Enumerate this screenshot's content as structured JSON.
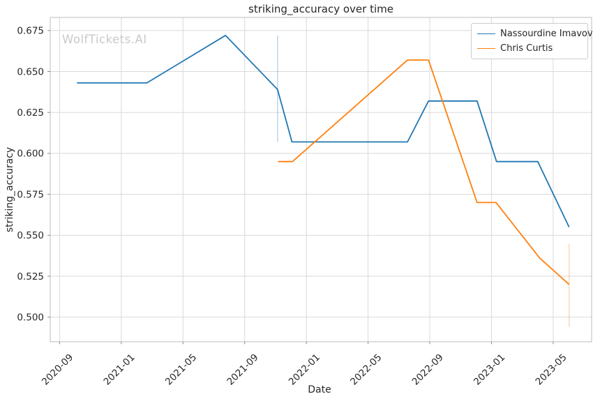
{
  "chart_data": {
    "type": "line",
    "title": "striking_accuracy over time",
    "xlabel": "Date",
    "ylabel": "striking_accuracy",
    "watermark": "WolfTickets.AI",
    "grid": true,
    "legend_position": "upper right",
    "x_tick_labels": [
      "2020-09",
      "2021-01",
      "2021-05",
      "2021-09",
      "2022-01",
      "2022-05",
      "2022-09",
      "2023-01",
      "2023-05"
    ],
    "y_tick_labels": [
      "0.500",
      "0.525",
      "0.550",
      "0.575",
      "0.600",
      "0.625",
      "0.650",
      "0.675"
    ],
    "xlim": [
      "2020-08-13",
      "2023-07-16"
    ],
    "ylim": [
      0.485,
      0.683
    ],
    "colors": {
      "grid": "#d9d9d9",
      "spine": "#bcbcbc",
      "tick_mark": "#8a8a8a",
      "text": "#262626",
      "watermark": "#c9c9c9",
      "series_blue": "#1f77b4",
      "series_orange": "#ff7f0e"
    },
    "series": [
      {
        "name": "Nassourdine Imavov",
        "color": "#1f77b4",
        "points": [
          [
            "2020-10-05",
            0.643
          ],
          [
            "2021-02-21",
            0.643
          ],
          [
            "2021-07-24",
            0.672
          ],
          [
            "2021-11-05",
            0.639
          ],
          [
            "2021-12-03",
            0.607
          ],
          [
            "2022-07-18",
            0.607
          ],
          [
            "2022-08-29",
            0.632
          ],
          [
            "2022-12-03",
            0.632
          ],
          [
            "2023-01-11",
            0.595
          ],
          [
            "2023-04-01",
            0.595
          ],
          [
            "2023-06-02",
            0.555
          ]
        ],
        "error_bar": {
          "date": "2021-11-05",
          "low": 0.607,
          "high": 0.672
        }
      },
      {
        "name": "Chris Curtis",
        "color": "#ff7f0e",
        "points": [
          [
            "2021-11-06",
            0.595
          ],
          [
            "2021-12-04",
            0.595
          ],
          [
            "2022-07-18",
            0.657
          ],
          [
            "2022-08-29",
            0.657
          ],
          [
            "2022-12-03",
            0.57
          ],
          [
            "2023-01-10",
            0.57
          ],
          [
            "2023-04-05",
            0.536
          ],
          [
            "2023-06-02",
            0.52
          ]
        ],
        "error_bar": {
          "date": "2023-06-02",
          "low": 0.494,
          "high": 0.545
        }
      }
    ]
  }
}
